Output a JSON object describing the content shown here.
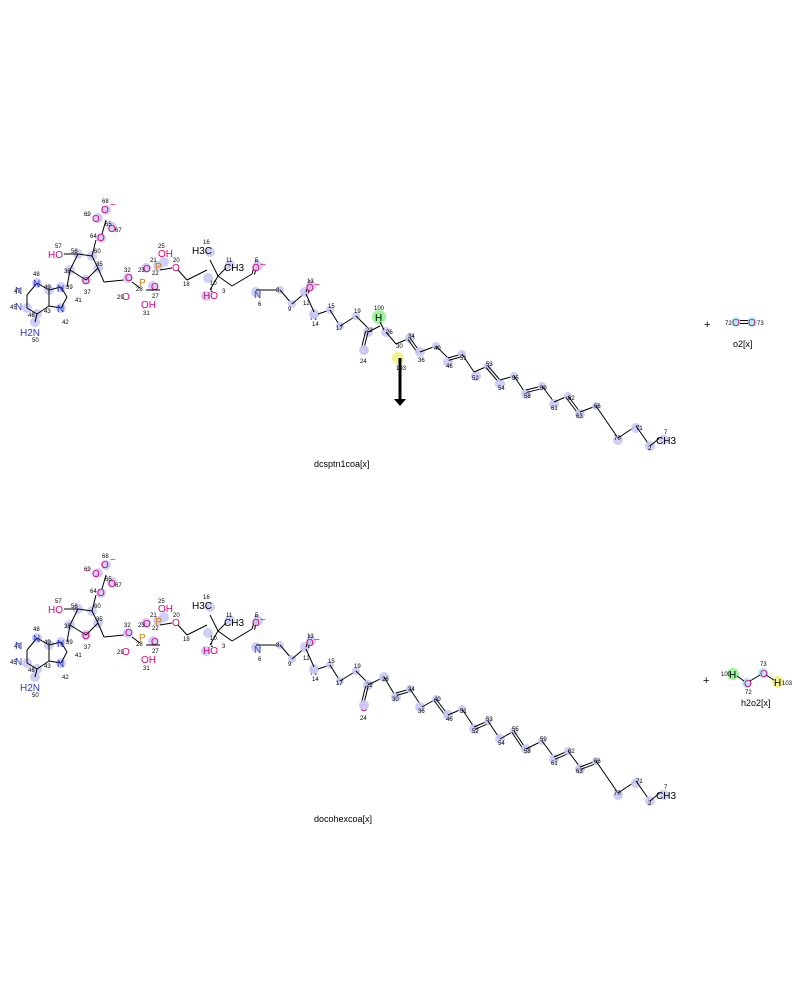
{
  "reactants": {
    "main_label": "dcsptn1coa[x]",
    "co_label": "o2[x]",
    "plus": "+"
  },
  "products": {
    "main_label": "docohexcoa[x]",
    "co_label": "h2o2[x]",
    "plus": "+"
  },
  "atom_text": {
    "O": "O",
    "N": "N",
    "P": "P",
    "H": "H",
    "OH": "OH",
    "HO": "HO",
    "H2N": "H2N",
    "H3C": "H3C",
    "CH3": "CH3",
    "minus": "−"
  },
  "colors": {
    "oxygen": "#e0007a",
    "nitrogen": "#2a3ad6",
    "phosphorus": "#d07a00",
    "carbon": "#000000",
    "highlight": "#c9c9f5",
    "hydrogen_green": "#9cf59c",
    "hydrogen_yellow": "#f2f28c",
    "oxygen_cyan": "#a8eef2"
  }
}
